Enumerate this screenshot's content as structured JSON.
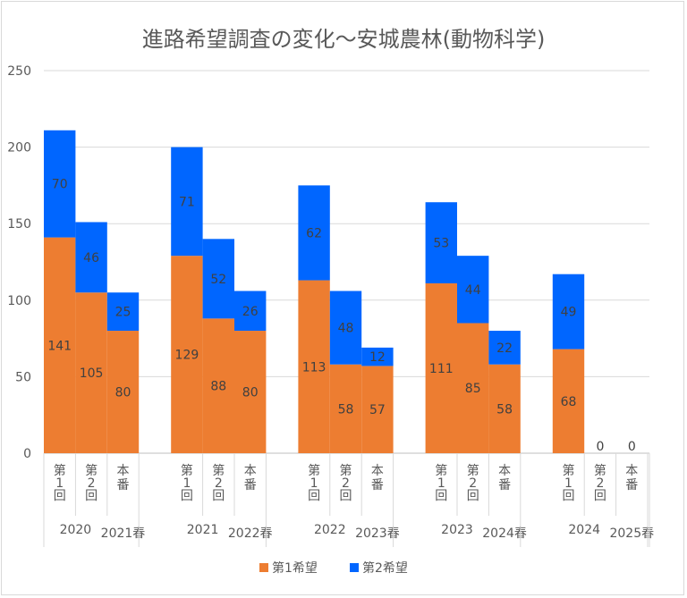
{
  "chart_data": {
    "type": "bar",
    "stacked": true,
    "title": "進路希望調査の変化～安城農林(動物科学)",
    "ylim": [
      0,
      250
    ],
    "yticks": [
      0,
      50,
      100,
      150,
      200,
      250
    ],
    "grid": true,
    "legend_position": "bottom",
    "groups": [
      {
        "label": "2020",
        "sublabel": "2021春",
        "categories": [
          "第1回",
          "第2回",
          "本番"
        ]
      },
      {
        "label": "2021",
        "sublabel": "2022春",
        "categories": [
          "第1回",
          "第2回",
          "本番"
        ]
      },
      {
        "label": "2022",
        "sublabel": "2023春",
        "categories": [
          "第1回",
          "第2回",
          "本番"
        ]
      },
      {
        "label": "2023",
        "sublabel": "2024春",
        "categories": [
          "第1回",
          "第2回",
          "本番"
        ]
      },
      {
        "label": "2024",
        "sublabel": "2025春",
        "categories": [
          "第1回",
          "第2回",
          "本番"
        ]
      }
    ],
    "series": [
      {
        "name": "第1希望",
        "color": "#ED7D31",
        "values": [
          [
            141,
            105,
            80
          ],
          [
            129,
            88,
            80
          ],
          [
            113,
            58,
            57
          ],
          [
            111,
            85,
            58
          ],
          [
            68,
            null,
            null
          ]
        ]
      },
      {
        "name": "第2希望",
        "color": "#0066FF",
        "values": [
          [
            70,
            46,
            25
          ],
          [
            71,
            52,
            26
          ],
          [
            62,
            48,
            12
          ],
          [
            53,
            44,
            22
          ],
          [
            49,
            0,
            0
          ]
        ]
      }
    ]
  }
}
